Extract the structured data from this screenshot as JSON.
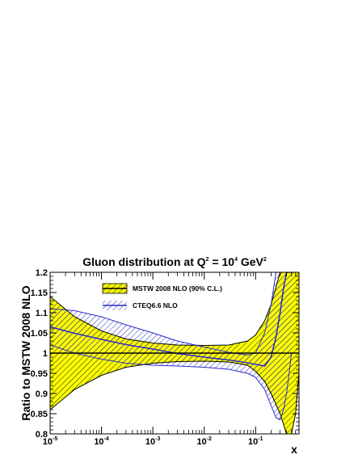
{
  "chart_data": {
    "type": "line",
    "title": "Gluon distribution at Q² = 10⁴ GeV²",
    "title_parts": {
      "pre": "Gluon distribution at Q",
      "sup1": "2",
      "mid": " = 10",
      "sup2": "4",
      "mid2": " GeV",
      "sup3": "2"
    },
    "xlabel": "x",
    "ylabel": "Ratio to MSTW 2008 NLO",
    "x_scale": "log",
    "xlim": [
      1e-05,
      0.7
    ],
    "ylim": [
      0.8,
      1.2
    ],
    "x_ticks": [
      {
        "base": "10",
        "exp": "-5",
        "value": 1e-05
      },
      {
        "base": "10",
        "exp": "-4",
        "value": 0.0001
      },
      {
        "base": "10",
        "exp": "-3",
        "value": 0.001
      },
      {
        "base": "10",
        "exp": "-2",
        "value": 0.01
      },
      {
        "base": "10",
        "exp": "-1",
        "value": 0.1
      }
    ],
    "y_ticks": [
      "0.8",
      "0.85",
      "0.9",
      "0.95",
      "1",
      "1.05",
      "1.1",
      "1.15",
      "1.2"
    ],
    "legend_position": "top-left",
    "series": [
      {
        "name": "MSTW 2008 NLO (90% C.L.)",
        "style": "yellow band with black outline, hatched",
        "color": "#ffff00",
        "x": [
          1e-05,
          3e-05,
          0.0001,
          0.0003,
          0.001,
          0.003,
          0.01,
          0.03,
          0.07,
          0.1,
          0.15,
          0.2,
          0.3,
          0.4,
          0.5,
          0.6,
          0.7
        ],
        "central": [
          1,
          1,
          1,
          1,
          1,
          1,
          1,
          1,
          1,
          1,
          1,
          1,
          1,
          1,
          1,
          1,
          1
        ],
        "upper": [
          1.14,
          1.09,
          1.055,
          1.035,
          1.025,
          1.02,
          1.019,
          1.02,
          1.03,
          1.045,
          1.08,
          1.12,
          1.2,
          1.2,
          1.2,
          1.2,
          1.2
        ],
        "lower": [
          0.86,
          0.91,
          0.945,
          0.965,
          0.975,
          0.979,
          0.98,
          0.978,
          0.97,
          0.955,
          0.93,
          0.9,
          0.85,
          0.8,
          0.8,
          0.85,
          0.95
        ]
      },
      {
        "name": "CTEQ6.6 NLO",
        "style": "blue hatched band",
        "color": "#2a2ac8",
        "x": [
          1e-05,
          3e-05,
          0.0001,
          0.0003,
          0.001,
          0.003,
          0.01,
          0.03,
          0.07,
          0.1,
          0.15,
          0.2,
          0.25,
          0.3,
          0.35,
          0.4,
          0.45,
          0.5
        ],
        "central": [
          1.065,
          1.049,
          1.034,
          1.021,
          1.01,
          0.999,
          0.99,
          0.983,
          0.976,
          0.972,
          0.968,
          0.99,
          1.04,
          1.1,
          1.16,
          1.2,
          1.2,
          1.2
        ],
        "upper": [
          1.11,
          1.105,
          1.09,
          1.07,
          1.05,
          1.03,
          1.015,
          1.002,
          0.995,
          1.0,
          1.05,
          1.12,
          1.2,
          1.2,
          1.2,
          1.2,
          1.2,
          1.2
        ],
        "lower": [
          1.02,
          1.0,
          0.985,
          0.975,
          0.97,
          0.968,
          0.965,
          0.96,
          0.95,
          0.94,
          0.91,
          0.87,
          0.84,
          0.835,
          0.86,
          0.9,
          0.95,
          1.0
        ]
      }
    ]
  }
}
